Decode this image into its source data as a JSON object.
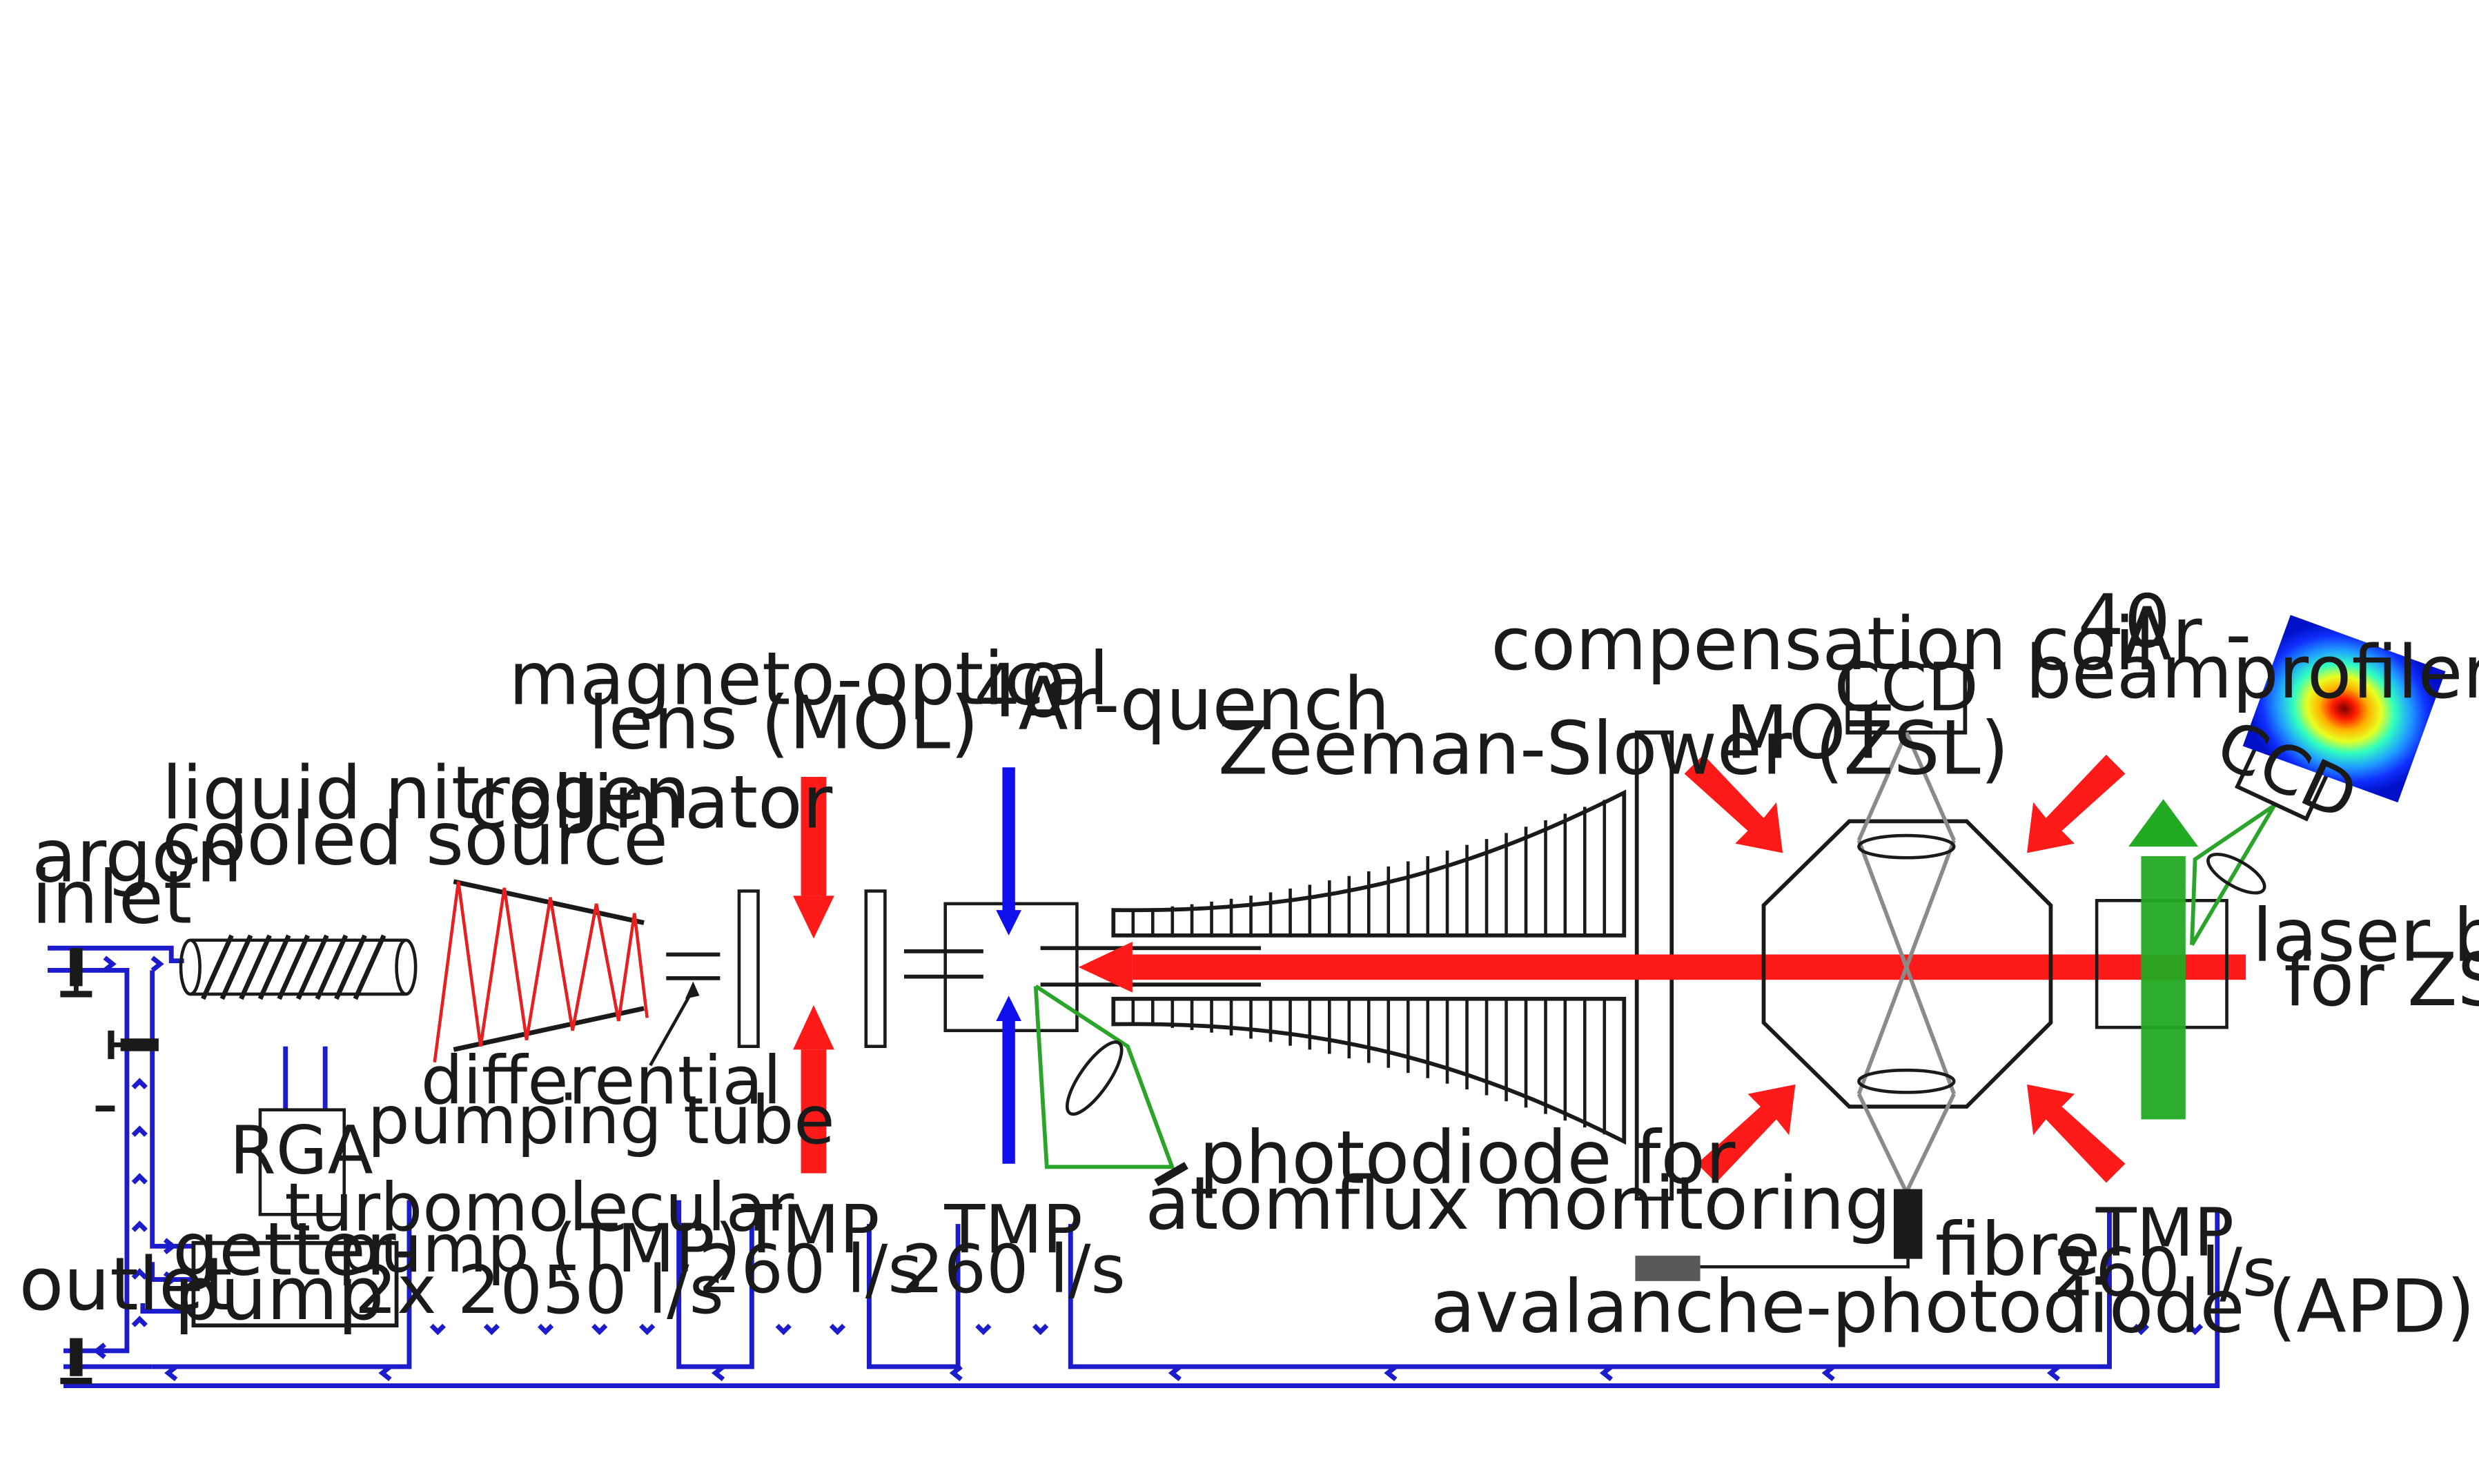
{
  "labels": {
    "argon_inlet": [
      "argon",
      "inlet"
    ],
    "outlet": "outlet",
    "dash": "-",
    "source": [
      "liquid nitrogen",
      "cooled source"
    ],
    "collimator": "collimator",
    "rga": "RGA",
    "getter": [
      "getter-",
      "pump"
    ],
    "turbo": [
      "turbomolecular",
      "pump (TMP)",
      "2x 2050 l/s"
    ],
    "diff_tube": [
      "differential",
      "pumping tube"
    ],
    "mol": [
      "magneto-optical",
      "lens (MOL)"
    ],
    "tmp_speed": [
      "TMP",
      "260 l/s"
    ],
    "quench_sup": "40",
    "quench": "Ar-quench",
    "zeeman": "Zeeman-Slower (ZSL)",
    "comp_coil": "compensation coil",
    "mot": "MOT",
    "ccd": "CCD",
    "beamprofiler_sup": "40",
    "beamprofiler_l1": "Ar -",
    "beamprofiler_l2": "beamprofiler",
    "photodiode": [
      "photodiode for",
      "atomflux monitoring"
    ],
    "fibre": "fibre",
    "apd": "avalanche-photodiode (APD)",
    "laser": [
      "laser beam",
      "for ZSL"
    ]
  },
  "colors": {
    "vacuum_lines": "#1c1ccc",
    "laser_red": "#ff1a1a",
    "quench_blue": "#1010ee",
    "imaging_green": "#22aa22"
  }
}
